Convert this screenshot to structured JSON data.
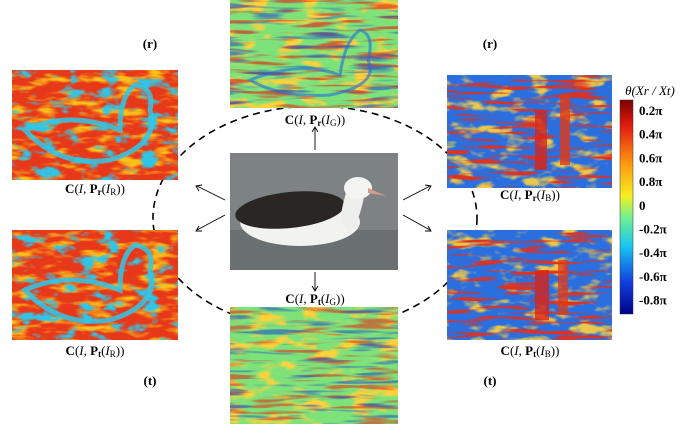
{
  "labels": {
    "top_left": "(r)",
    "top_right": "(r)",
    "bottom_left": "(t)",
    "bottom_right": "(t)"
  },
  "captions": {
    "top_center": [
      "C",
      "(",
      "I",
      ", ",
      "P",
      "r",
      "(",
      "I",
      "G",
      "))"
    ],
    "left_top": [
      "C",
      "(",
      "I",
      ", ",
      "P",
      "r",
      "(",
      "I",
      "R",
      "))"
    ],
    "left_bottom": [
      "C",
      "(",
      "I",
      ", ",
      "P",
      "t",
      "(",
      "I",
      "R",
      "))"
    ],
    "right_top": [
      "C",
      "(",
      "I",
      ", ",
      "P",
      "r",
      "(",
      "I",
      "B",
      "))"
    ],
    "right_bottom": [
      "C",
      "(",
      "I",
      ", ",
      "P",
      "t",
      "(",
      "I",
      "B",
      "))"
    ],
    "bottom_center": [
      "C",
      "(",
      "I",
      ", ",
      "P",
      "t",
      "(",
      "I",
      "G",
      "))"
    ]
  },
  "colorbar": {
    "title": "θ(Xr / Xt)",
    "ticks": [
      "0.2π",
      "0.4π",
      "0.6π",
      "0.8π",
      "0",
      "-0.2π",
      "-0.4π",
      "-0.6π",
      "-0.8π"
    ]
  }
}
